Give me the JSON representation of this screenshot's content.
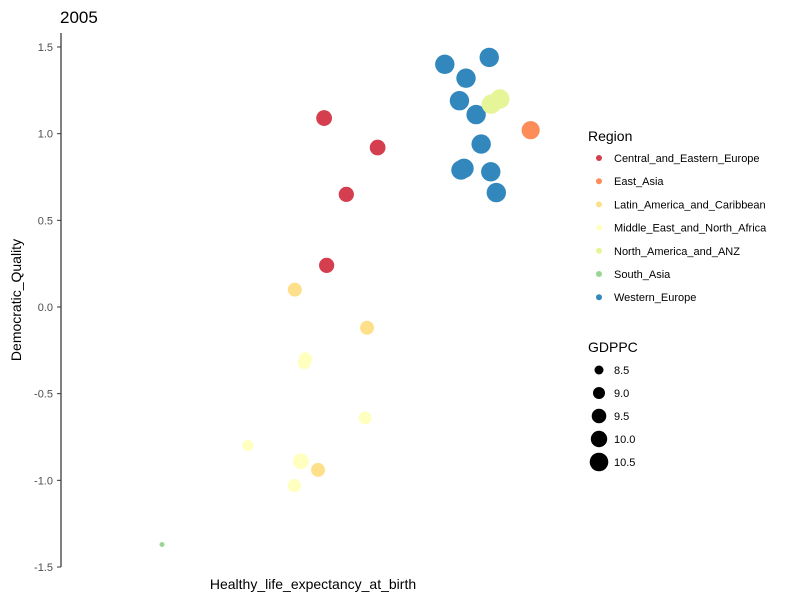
{
  "chart_data": {
    "type": "scatter",
    "title": "2005",
    "xlabel": "Healthy_life_expectancy_at_birth",
    "ylabel": "Democratic_Quality",
    "x_ticks_shown": false,
    "ylim": [
      -1.5,
      1.6
    ],
    "y_ticks": [
      "-1.5",
      "-1.0",
      "-0.5",
      "0.0",
      "0.5",
      "1.0",
      "1.5"
    ],
    "grid": false,
    "legend_position": "right",
    "color_legend": {
      "title": "Region",
      "entries": [
        {
          "label": "Central_and_Eastern_Europe",
          "color": "#d53e4f"
        },
        {
          "label": "East_Asia",
          "color": "#fc8d59"
        },
        {
          "label": "Latin_America_and_Caribbean",
          "color": "#fee08b"
        },
        {
          "label": "Middle_East_and_North_Africa",
          "color": "#ffffbf"
        },
        {
          "label": "North_America_and_ANZ",
          "color": "#e6f598"
        },
        {
          "label": "South_Asia",
          "color": "#99d594"
        },
        {
          "label": "Western_Europe",
          "color": "#3288bd"
        }
      ]
    },
    "size_legend": {
      "title": "GDPPC",
      "entries": [
        {
          "label": "8.5",
          "value": 8.5
        },
        {
          "label": "9.0",
          "value": 9.0
        },
        {
          "label": "9.5",
          "value": 9.5
        },
        {
          "label": "10.0",
          "value": 10.0
        },
        {
          "label": "10.5",
          "value": 10.5
        }
      ]
    },
    "points": [
      {
        "region": "Western_Europe",
        "x": 0.848,
        "y": 1.44,
        "gdppc": 10.6
      },
      {
        "region": "Western_Europe",
        "x": 0.76,
        "y": 1.4,
        "gdppc": 10.6
      },
      {
        "region": "Western_Europe",
        "x": 0.802,
        "y": 1.32,
        "gdppc": 10.6
      },
      {
        "region": "Western_Europe",
        "x": 0.789,
        "y": 1.19,
        "gdppc": 10.6
      },
      {
        "region": "Western_Europe",
        "x": 0.822,
        "y": 1.11,
        "gdppc": 10.6
      },
      {
        "region": "Western_Europe",
        "x": 0.832,
        "y": 0.94,
        "gdppc": 10.6
      },
      {
        "region": "Western_Europe",
        "x": 0.798,
        "y": 0.8,
        "gdppc": 10.6
      },
      {
        "region": "Western_Europe",
        "x": 0.792,
        "y": 0.79,
        "gdppc": 10.6
      },
      {
        "region": "Western_Europe",
        "x": 0.851,
        "y": 0.78,
        "gdppc": 10.6
      },
      {
        "region": "Western_Europe",
        "x": 0.862,
        "y": 0.66,
        "gdppc": 10.6
      },
      {
        "region": "North_America_and_ANZ",
        "x": 0.869,
        "y": 1.2,
        "gdppc": 10.6
      },
      {
        "region": "North_America_and_ANZ",
        "x": 0.852,
        "y": 1.17,
        "gdppc": 10.6
      },
      {
        "region": "East_Asia",
        "x": 0.93,
        "y": 1.02,
        "gdppc": 10.4
      },
      {
        "region": "Central_and_Eastern_Europe",
        "x": 0.521,
        "y": 1.09,
        "gdppc": 10.0
      },
      {
        "region": "Central_and_Eastern_Europe",
        "x": 0.627,
        "y": 0.92,
        "gdppc": 10.0
      },
      {
        "region": "Central_and_Eastern_Europe",
        "x": 0.565,
        "y": 0.65,
        "gdppc": 9.9
      },
      {
        "region": "Central_and_Eastern_Europe",
        "x": 0.526,
        "y": 0.24,
        "gdppc": 9.9
      },
      {
        "region": "Latin_America_and_Caribbean",
        "x": 0.463,
        "y": 0.1,
        "gdppc": 9.7
      },
      {
        "region": "Latin_America_and_Caribbean",
        "x": 0.606,
        "y": -0.12,
        "gdppc": 9.7
      },
      {
        "region": "Latin_America_and_Caribbean",
        "x": 0.509,
        "y": -0.94,
        "gdppc": 9.7
      },
      {
        "region": "Middle_East_and_North_Africa",
        "x": 0.484,
        "y": -0.3,
        "gdppc": 9.6
      },
      {
        "region": "Middle_East_and_North_Africa",
        "x": 0.482,
        "y": -0.32,
        "gdppc": 9.6
      },
      {
        "region": "Middle_East_and_North_Africa",
        "x": 0.602,
        "y": -0.64,
        "gdppc": 9.5
      },
      {
        "region": "Middle_East_and_North_Africa",
        "x": 0.37,
        "y": -0.8,
        "gdppc": 9.2
      },
      {
        "region": "Middle_East_and_North_Africa",
        "x": 0.475,
        "y": -0.89,
        "gdppc": 10.0
      },
      {
        "region": "Middle_East_and_North_Africa",
        "x": 0.462,
        "y": -1.03,
        "gdppc": 9.6
      },
      {
        "region": "South_Asia",
        "x": 0.2,
        "y": -1.37,
        "gdppc": 8.2
      }
    ]
  }
}
